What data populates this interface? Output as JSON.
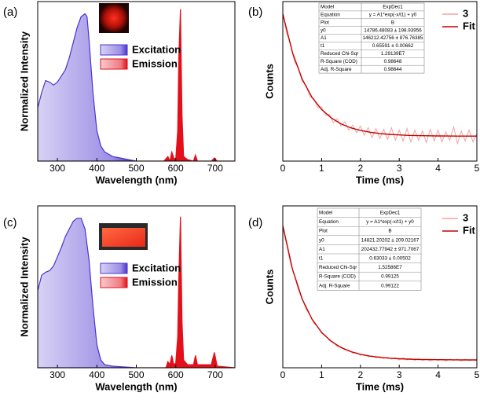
{
  "chart_data": [
    {
      "type": "area",
      "label": "(a)",
      "xlabel": "Wavelength (nm)",
      "ylabel": "Normalized Intensity",
      "xlim": [
        250,
        750
      ],
      "xticks": [
        300,
        400,
        500,
        600,
        700
      ],
      "ylim": [
        0,
        1.05
      ],
      "series": [
        {
          "name": "Excitation",
          "color": "#4b33d0",
          "x": [
            250,
            260,
            270,
            280,
            290,
            300,
            310,
            320,
            330,
            340,
            350,
            360,
            370,
            375,
            380,
            390,
            400,
            410,
            420,
            440,
            460,
            480,
            500
          ],
          "values": [
            0.35,
            0.45,
            0.53,
            0.52,
            0.5,
            0.52,
            0.56,
            0.6,
            0.68,
            0.78,
            0.88,
            0.95,
            0.97,
            0.95,
            0.8,
            0.45,
            0.2,
            0.1,
            0.06,
            0.03,
            0.02,
            0.01,
            0
          ]
        },
        {
          "name": "Emission",
          "color": "#e3101a",
          "x": [
            500,
            570,
            580,
            585,
            590,
            595,
            600,
            605,
            608,
            612,
            616,
            620,
            630,
            645,
            650,
            655,
            690,
            698,
            705,
            750
          ],
          "values": [
            0,
            0,
            0.03,
            0,
            0.06,
            0.02,
            0.01,
            0.2,
            0.7,
            1.0,
            0.3,
            0.03,
            0.01,
            0,
            0.04,
            0,
            0,
            0.02,
            0,
            0
          ]
        }
      ]
    },
    {
      "type": "line",
      "label": "(b)",
      "xlabel": "Time (ms)",
      "ylabel": "Counts",
      "xlim": [
        0,
        5
      ],
      "xticks": [
        0,
        1,
        2,
        3,
        4,
        5
      ],
      "ylim": [
        -15000,
        176000
      ],
      "series": [
        {
          "name": "3",
          "color": "#f4a3a3",
          "x": [
            0,
            0.1,
            0.2,
            0.3,
            0.4,
            0.5,
            0.6,
            0.7,
            0.8,
            0.9,
            1,
            1.1,
            1.2,
            1.3,
            1.4,
            1.5,
            1.6,
            1.7,
            1.8,
            1.9,
            2,
            2.1,
            2.2,
            2.3,
            2.4,
            2.5,
            2.6,
            2.7,
            2.8,
            2.9,
            3,
            3.1,
            3.2,
            3.3,
            3.4,
            3.5,
            3.6,
            3.7,
            3.8,
            3.9,
            4,
            4.1,
            4.2,
            4.3,
            4.4,
            4.5,
            4.6,
            4.7,
            4.8,
            4.9,
            5
          ],
          "values": [
            163000,
            138000,
            126000,
            104000,
            97000,
            80000,
            76000,
            62000,
            60000,
            49000,
            50000,
            40000,
            41000,
            31000,
            36000,
            27000,
            32000,
            22000,
            28000,
            19000,
            27000,
            16000,
            25000,
            13000,
            24000,
            12000,
            23000,
            11000,
            25000,
            10000,
            22000,
            9000,
            24000,
            8000,
            22000,
            10000,
            21000,
            7000,
            23000,
            9000,
            22000,
            8000,
            20000,
            10000,
            26000,
            6000,
            21000,
            9000,
            22000,
            8000,
            18000
          ]
        },
        {
          "name": "Fit",
          "color": "#c40000",
          "x": [
            0,
            0.25,
            0.5,
            0.75,
            1,
            1.25,
            1.5,
            1.75,
            2,
            2.25,
            2.5,
            2.75,
            3,
            3.25,
            3.5,
            3.75,
            4,
            4.25,
            4.5,
            4.75,
            5
          ],
          "values": [
            161000,
            114600,
            83100,
            61400,
            46700,
            36600,
            29600,
            24900,
            21700,
            19500,
            18000,
            17000,
            16300,
            15800,
            15500,
            15300,
            15100,
            15000,
            14900,
            14900,
            14900
          ]
        }
      ],
      "fit_table": {
        "rows": [
          [
            "Model",
            "ExpDec1"
          ],
          [
            "Equation",
            "y = A1*exp(-x/t1) + y0"
          ],
          [
            "Plot",
            "B"
          ],
          [
            "y0",
            "14786.48083 ± 198.93956"
          ],
          [
            "A1",
            "146212.42756 ± 876.76385"
          ],
          [
            "t1",
            "0.65591 ± 0.00662"
          ],
          [
            "Reduced Chi-Sqr",
            "1.29139E7"
          ],
          [
            "R-Square (COD)",
            "0.98648"
          ],
          [
            "Adj. R-Square",
            "0.98644"
          ]
        ]
      }
    },
    {
      "type": "area",
      "label": "(c)",
      "xlabel": "Wavelength (nm)",
      "ylabel": "Normalized Intensity",
      "xlim": [
        250,
        750
      ],
      "xticks": [
        300,
        400,
        500,
        600,
        700
      ],
      "ylim": [
        0,
        1.05
      ],
      "series": [
        {
          "name": "Excitation",
          "color": "#4b33d0",
          "x": [
            250,
            260,
            270,
            280,
            290,
            300,
            310,
            320,
            330,
            340,
            350,
            360,
            370,
            380,
            390,
            400,
            410,
            420,
            440,
            500
          ],
          "values": [
            0.5,
            0.6,
            0.62,
            0.63,
            0.66,
            0.72,
            0.78,
            0.85,
            0.9,
            0.95,
            0.97,
            0.97,
            0.9,
            0.7,
            0.4,
            0.15,
            0.05,
            0.02,
            0.01,
            0
          ]
        },
        {
          "name": "Emission",
          "color": "#e3101a",
          "x": [
            500,
            575,
            580,
            585,
            590,
            595,
            600,
            605,
            608,
            612,
            616,
            620,
            630,
            645,
            650,
            655,
            690,
            698,
            705,
            750
          ],
          "values": [
            0,
            0,
            0.04,
            0.02,
            0.08,
            0.02,
            0.03,
            0.2,
            0.6,
            0.98,
            0.3,
            0.05,
            0.02,
            0.02,
            0.08,
            0.02,
            0.02,
            0.1,
            0.01,
            0
          ]
        }
      ]
    },
    {
      "type": "line",
      "label": "(d)",
      "xlabel": "Time (ms)",
      "ylabel": "Counts",
      "xlim": [
        0,
        5
      ],
      "xticks": [
        0,
        1,
        2,
        3,
        4,
        5
      ],
      "ylim": [
        3000,
        247000
      ],
      "series": [
        {
          "name": "3",
          "color": "#f4a3a3",
          "x": [
            0,
            0.1,
            0.2,
            0.3,
            0.4,
            0.5,
            0.6,
            0.7,
            0.8,
            0.9,
            1,
            1.1,
            1.2,
            1.3,
            1.4,
            1.5,
            1.6,
            1.7,
            1.8,
            1.9,
            2,
            2.1,
            2.2,
            2.3,
            2.4,
            2.5,
            2.6,
            2.7,
            2.8,
            2.9,
            3,
            3.1,
            3.2,
            3.3,
            3.4,
            3.5,
            3.6,
            3.7,
            3.8,
            3.9,
            4,
            4.1,
            4.2,
            4.3,
            4.4,
            4.5,
            4.6,
            4.7,
            4.8,
            4.9,
            5
          ],
          "values": [
            214000,
            189000,
            160000,
            142000,
            120000,
            108000,
            91000,
            83000,
            70000,
            65000,
            55000,
            52000,
            44000,
            42000,
            35000,
            35000,
            30000,
            30000,
            25000,
            26000,
            22000,
            23000,
            20000,
            21000,
            18000,
            20000,
            17000,
            19000,
            16000,
            18000,
            15000,
            18000,
            15000,
            17000,
            14000,
            17000,
            14000,
            16000,
            13000,
            16000,
            14000,
            16000,
            13000,
            16000,
            14000,
            16000,
            13000,
            16000,
            14000,
            15000,
            14000
          ]
        },
        {
          "name": "Fit",
          "color": "#c40000",
          "x": [
            0,
            0.25,
            0.5,
            0.75,
            1,
            1.25,
            1.5,
            1.75,
            2,
            2.25,
            2.5,
            2.75,
            3,
            3.25,
            3.5,
            3.75,
            4,
            4.25,
            4.5,
            4.75,
            5
          ],
          "values": [
            217300,
            151000,
            106400,
            76400,
            56300,
            42700,
            33600,
            27400,
            23300,
            20500,
            18700,
            17400,
            16600,
            16000,
            15600,
            15300,
            15200,
            15100,
            15000,
            14900,
            14900
          ]
        }
      ],
      "fit_table": {
        "rows": [
          [
            "Model",
            "ExpDec1"
          ],
          [
            "Equation",
            "y = A1*exp(-x/t1) + y0"
          ],
          [
            "Plot",
            "B"
          ],
          [
            "y0",
            "14821.20202 ± 209.02167"
          ],
          [
            "A1",
            "202432.77942 ± 971.7067"
          ],
          [
            "t1",
            "0.63033 ± 0.00502"
          ],
          [
            "Reduced Chi-Sqr",
            "1.52586E7"
          ],
          [
            "R-Square (COD)",
            "0.99125"
          ],
          [
            "Adj. R-Square",
            "0.99122"
          ]
        ]
      }
    }
  ]
}
